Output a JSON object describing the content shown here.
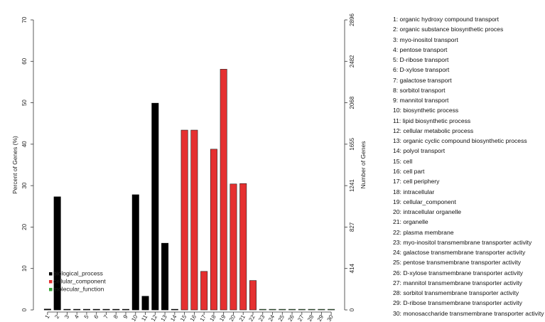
{
  "chart_data": {
    "type": "bar",
    "ylabel_left": "Percent of Genes (%)",
    "ylabel_right": "Number of Genes",
    "ylim_left": [
      0,
      70
    ],
    "left_ticks": [
      "0",
      "10",
      "20",
      "30",
      "40",
      "50",
      "60",
      "70"
    ],
    "right_ticks": [
      "0",
      "414",
      "827",
      "1241",
      "1655",
      "2068",
      "2482",
      "2896"
    ],
    "categories": [
      "1",
      "2",
      "3",
      "4",
      "5",
      "6",
      "7",
      "8",
      "9",
      "10",
      "11",
      "12",
      "13",
      "14",
      "15",
      "16",
      "17",
      "18",
      "19",
      "20",
      "21",
      "22",
      "23",
      "24",
      "25",
      "26",
      "27",
      "28",
      "29",
      "30"
    ],
    "values": [
      0.2,
      27.3,
      0.05,
      0.05,
      0.05,
      0.05,
      0.05,
      0.05,
      0.05,
      27.8,
      3.3,
      49.9,
      16.1,
      0.05,
      43.4,
      43.4,
      9.3,
      38.8,
      58.1,
      30.4,
      30.5,
      7.1,
      0.05,
      0.05,
      0.05,
      0.05,
      0.05,
      0.05,
      0.05,
      0.05
    ],
    "groups": [
      "biological_process",
      "biological_process",
      "biological_process",
      "biological_process",
      "biological_process",
      "biological_process",
      "biological_process",
      "biological_process",
      "biological_process",
      "biological_process",
      "biological_process",
      "biological_process",
      "biological_process",
      "biological_process",
      "cellular_component",
      "cellular_component",
      "cellular_component",
      "cellular_component",
      "cellular_component",
      "cellular_component",
      "cellular_component",
      "cellular_component",
      "molecular_function",
      "molecular_function",
      "molecular_function",
      "molecular_function",
      "molecular_function",
      "molecular_function",
      "molecular_function",
      "molecular_function"
    ],
    "legend": [
      {
        "label": "biological_process",
        "color": "#000000"
      },
      {
        "label": "cellular_component",
        "color": "#e53030"
      },
      {
        "label": "molecular_function",
        "color": "#3aa83a"
      }
    ],
    "category_labels": [
      "1: organic hydroxy compound transport",
      "2: organic substance biosynthetic proces",
      "3: myo-inositol transport",
      "4: pentose transport",
      "5: D-ribose transport",
      "6: D-xylose transport",
      "7: galactose transport",
      "8: sorbitol transport",
      "9: mannitol transport",
      "10: biosynthetic process",
      "11: lipid biosynthetic process",
      "12: cellular metabolic process",
      "13: organic cyclic compound biosynthetic process",
      "14: polyol transport",
      "15: cell",
      "16: cell part",
      "17: cell periphery",
      "18: intracellular",
      "19: cellular_component",
      "20: intracellular organelle",
      "21: organelle",
      "22: plasma membrane",
      "23: myo-inositol transmembrane transporter activity",
      "24: galactose transmembrane transporter activity",
      "25: pentose transmembrane transporter activity",
      "26: D-xylose transmembrane transporter activity",
      "27: mannitol transmembrane transporter activity",
      "28: sorbitol transmembrane transporter activity",
      "29: D-ribose transmembrane transporter activity",
      "30: monosaccharide transmembrane transporter activity"
    ]
  }
}
